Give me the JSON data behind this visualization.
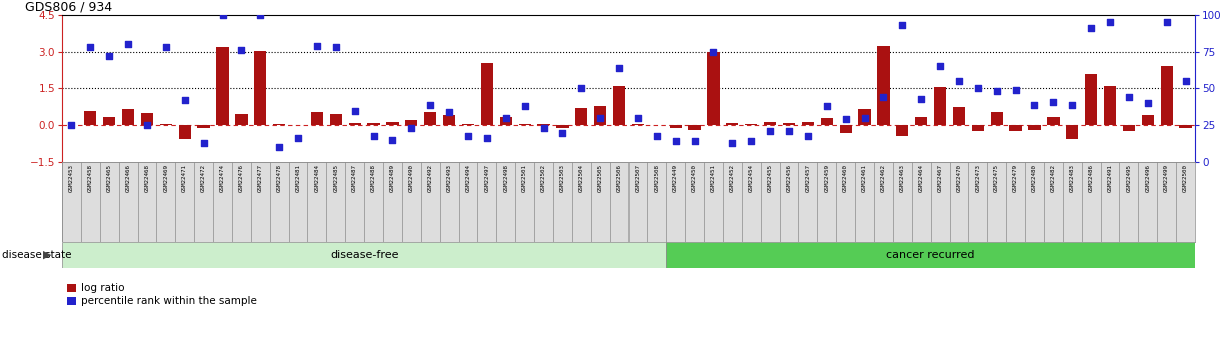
{
  "title": "GDS806 / 934",
  "ylim_left": [
    -1.5,
    4.5
  ],
  "ylim_right": [
    0,
    100
  ],
  "yticks_left": [
    -1.5,
    0.0,
    1.5,
    3.0,
    4.5
  ],
  "yticks_right": [
    0,
    25,
    50,
    75,
    100
  ],
  "samples": [
    "GSM22453",
    "GSM22458",
    "GSM22465",
    "GSM22466",
    "GSM22468",
    "GSM22469",
    "GSM22471",
    "GSM22472",
    "GSM22474",
    "GSM22476",
    "GSM22477",
    "GSM22478",
    "GSM22481",
    "GSM22484",
    "GSM22485",
    "GSM22487",
    "GSM22488",
    "GSM22489",
    "GSM22490",
    "GSM22492",
    "GSM22493",
    "GSM22494",
    "GSM22497",
    "GSM22498",
    "GSM22501",
    "GSM22502",
    "GSM22503",
    "GSM22504",
    "GSM22505",
    "GSM22506",
    "GSM22507",
    "GSM22508",
    "GSM22449",
    "GSM22450",
    "GSM22451",
    "GSM22452",
    "GSM22454",
    "GSM22455",
    "GSM22456",
    "GSM22457",
    "GSM22459",
    "GSM22460",
    "GSM22461",
    "GSM22462",
    "GSM22463",
    "GSM22464",
    "GSM22467",
    "GSM22470",
    "GSM22473",
    "GSM22475",
    "GSM22479",
    "GSM22480",
    "GSM22482",
    "GSM22483",
    "GSM22486",
    "GSM22491",
    "GSM22495",
    "GSM22496",
    "GSM22499",
    "GSM22500"
  ],
  "log_ratio": [
    0.0,
    0.6,
    0.35,
    0.65,
    0.5,
    0.07,
    -0.55,
    -0.1,
    3.2,
    0.45,
    3.05,
    0.05,
    0.0,
    0.55,
    0.45,
    0.1,
    0.1,
    0.12,
    0.22,
    0.55,
    0.42,
    0.07,
    2.55,
    0.35,
    0.05,
    0.05,
    -0.12,
    0.7,
    0.8,
    1.6,
    0.05,
    0.0,
    -0.1,
    -0.18,
    3.0,
    0.1,
    0.05,
    0.15,
    0.1,
    0.12,
    0.3,
    -0.3,
    0.65,
    3.25,
    -0.45,
    0.32,
    1.55,
    0.75,
    -0.22,
    0.55,
    -0.22,
    -0.18,
    0.35,
    -0.58,
    2.1,
    1.6,
    -0.22,
    0.42,
    2.4,
    -0.12
  ],
  "pct_rank": [
    25,
    78,
    72,
    80,
    25,
    78,
    42,
    13,
    100,
    76,
    100,
    10,
    16,
    79,
    78,
    35,
    18,
    15,
    23,
    39,
    34,
    18,
    16,
    30,
    38,
    23,
    20,
    50,
    30,
    64,
    30,
    18,
    14,
    14,
    75,
    13,
    14,
    21,
    21,
    18,
    38,
    29,
    30,
    44,
    93,
    43,
    65,
    55,
    50,
    48,
    49,
    39,
    41,
    39,
    91,
    95,
    44,
    40,
    95,
    55
  ],
  "disease_free_count": 32,
  "group_labels": [
    "disease-free",
    "cancer recurred"
  ],
  "group_color_light": "#cceecc",
  "group_color_dark": "#55cc55",
  "bar_color": "#aa1111",
  "scatter_color": "#2222cc",
  "zero_line_color": "#cc2222",
  "dotted_line_color": "#000000",
  "background_color": "#ffffff",
  "left_axis_color": "#cc2222",
  "right_axis_color": "#2222cc",
  "label_box_color": "#dddddd",
  "label_box_edge": "#999999",
  "legend_labels": [
    "log ratio",
    "percentile rank within the sample"
  ],
  "legend_colors": [
    "#aa1111",
    "#2222cc"
  ]
}
